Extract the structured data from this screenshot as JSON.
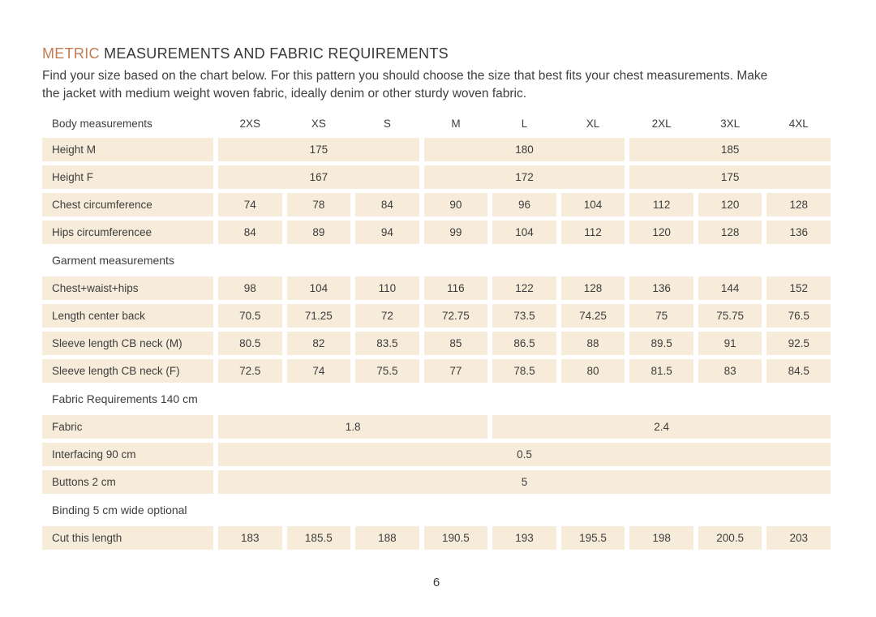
{
  "colors": {
    "accent": "#c57b53",
    "cell_bg": "#f7ecda",
    "text": "#3d3d3d"
  },
  "header": {
    "title_accent": "METRIC",
    "title_main": " MEASUREMENTS AND FABRIC REQUIREMENTS",
    "description": "Find your size based on the chart below. For this pattern you should choose the size that best fits your chest measurements. Make the jacket with medium weight woven fabric, ideally denim or other sturdy woven fabric."
  },
  "table": {
    "rows": [
      {
        "type": "header",
        "label": "Body measurements",
        "cells": [
          {
            "text": "2XS",
            "span": 1
          },
          {
            "text": "XS",
            "span": 1
          },
          {
            "text": "S",
            "span": 1
          },
          {
            "text": "M",
            "span": 1
          },
          {
            "text": "L",
            "span": 1
          },
          {
            "text": "XL",
            "span": 1
          },
          {
            "text": "2XL",
            "span": 1
          },
          {
            "text": "3XL",
            "span": 1
          },
          {
            "text": "4XL",
            "span": 1
          }
        ]
      },
      {
        "type": "data",
        "label": "Height M",
        "cells": [
          {
            "text": "175",
            "span": 3
          },
          {
            "text": "180",
            "span": 3
          },
          {
            "text": "185",
            "span": 3
          }
        ]
      },
      {
        "type": "data",
        "label": "Height F",
        "cells": [
          {
            "text": "167",
            "span": 3
          },
          {
            "text": "172",
            "span": 3
          },
          {
            "text": "175",
            "span": 3
          }
        ]
      },
      {
        "type": "data",
        "label": "Chest circumference",
        "cells": [
          {
            "text": "74",
            "span": 1
          },
          {
            "text": "78",
            "span": 1
          },
          {
            "text": "84",
            "span": 1
          },
          {
            "text": "90",
            "span": 1
          },
          {
            "text": "96",
            "span": 1
          },
          {
            "text": "104",
            "span": 1
          },
          {
            "text": "112",
            "span": 1
          },
          {
            "text": "120",
            "span": 1
          },
          {
            "text": "128",
            "span": 1
          }
        ]
      },
      {
        "type": "data",
        "label": "Hips circumferencee",
        "cells": [
          {
            "text": "84",
            "span": 1
          },
          {
            "text": "89",
            "span": 1
          },
          {
            "text": "94",
            "span": 1
          },
          {
            "text": "99",
            "span": 1
          },
          {
            "text": "104",
            "span": 1
          },
          {
            "text": "112",
            "span": 1
          },
          {
            "text": "120",
            "span": 1
          },
          {
            "text": "128",
            "span": 1
          },
          {
            "text": "136",
            "span": 1
          }
        ]
      },
      {
        "type": "section",
        "label": "Garment measurements"
      },
      {
        "type": "data",
        "label": "Chest+waist+hips",
        "cells": [
          {
            "text": "98",
            "span": 1
          },
          {
            "text": "104",
            "span": 1
          },
          {
            "text": "110",
            "span": 1
          },
          {
            "text": "116",
            "span": 1
          },
          {
            "text": "122",
            "span": 1
          },
          {
            "text": "128",
            "span": 1
          },
          {
            "text": "136",
            "span": 1
          },
          {
            "text": "144",
            "span": 1
          },
          {
            "text": "152",
            "span": 1
          }
        ]
      },
      {
        "type": "data",
        "label": "Length center back",
        "cells": [
          {
            "text": "70.5",
            "span": 1
          },
          {
            "text": "71.25",
            "span": 1
          },
          {
            "text": "72",
            "span": 1
          },
          {
            "text": "72.75",
            "span": 1
          },
          {
            "text": "73.5",
            "span": 1
          },
          {
            "text": "74.25",
            "span": 1
          },
          {
            "text": "75",
            "span": 1
          },
          {
            "text": "75.75",
            "span": 1
          },
          {
            "text": "76.5",
            "span": 1
          }
        ]
      },
      {
        "type": "data",
        "label": "Sleeve length CB neck (M)",
        "cells": [
          {
            "text": "80.5",
            "span": 1
          },
          {
            "text": "82",
            "span": 1
          },
          {
            "text": "83.5",
            "span": 1
          },
          {
            "text": "85",
            "span": 1
          },
          {
            "text": "86.5",
            "span": 1
          },
          {
            "text": "88",
            "span": 1
          },
          {
            "text": "89.5",
            "span": 1
          },
          {
            "text": "91",
            "span": 1
          },
          {
            "text": "92.5",
            "span": 1
          }
        ]
      },
      {
        "type": "data",
        "label": "Sleeve length CB neck (F)",
        "cells": [
          {
            "text": "72.5",
            "span": 1
          },
          {
            "text": "74",
            "span": 1
          },
          {
            "text": "75.5",
            "span": 1
          },
          {
            "text": "77",
            "span": 1
          },
          {
            "text": "78.5",
            "span": 1
          },
          {
            "text": "80",
            "span": 1
          },
          {
            "text": "81.5",
            "span": 1
          },
          {
            "text": "83",
            "span": 1
          },
          {
            "text": "84.5",
            "span": 1
          }
        ]
      },
      {
        "type": "section",
        "label": "Fabric Requirements 140 cm"
      },
      {
        "type": "data",
        "label": "Fabric",
        "cells": [
          {
            "text": "1.8",
            "span": 4
          },
          {
            "text": "2.4",
            "span": 5
          }
        ]
      },
      {
        "type": "data",
        "label": "Interfacing 90 cm",
        "cells": [
          {
            "text": "0.5",
            "span": 9
          }
        ]
      },
      {
        "type": "data",
        "label": "Buttons 2 cm",
        "cells": [
          {
            "text": "5",
            "span": 9
          }
        ]
      },
      {
        "type": "section",
        "label": "Binding 5 cm wide optional"
      },
      {
        "type": "data",
        "label": "Cut this length",
        "cells": [
          {
            "text": "183",
            "span": 1
          },
          {
            "text": "185.5",
            "span": 1
          },
          {
            "text": "188",
            "span": 1
          },
          {
            "text": "190.5",
            "span": 1
          },
          {
            "text": "193",
            "span": 1
          },
          {
            "text": "195.5",
            "span": 1
          },
          {
            "text": "198",
            "span": 1
          },
          {
            "text": "200.5",
            "span": 1
          },
          {
            "text": "203",
            "span": 1
          }
        ]
      }
    ]
  },
  "footer": {
    "page_number": "6"
  }
}
